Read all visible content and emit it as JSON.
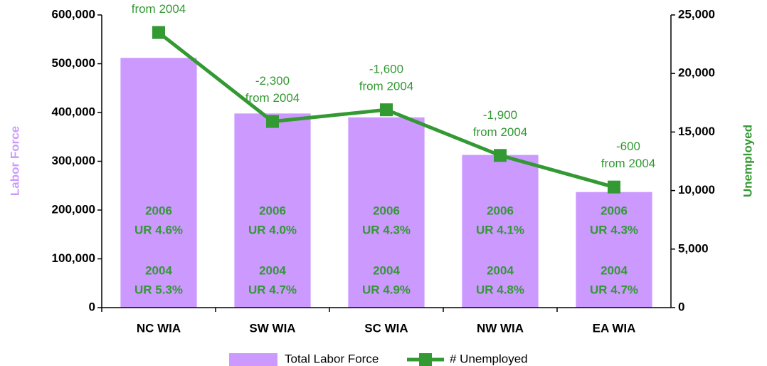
{
  "chart_data": {
    "type": "bar",
    "categories": [
      "NC WIA",
      "SW WIA",
      "SC WIA",
      "NW WIA",
      "EA WIA"
    ],
    "series": [
      {
        "name": "Total Labor Force",
        "type": "bar",
        "color": "#cc99ff",
        "values": [
          512000,
          398000,
          390000,
          313000,
          237000
        ]
      },
      {
        "name": "# Unemployed",
        "type": "line",
        "axis": "y2",
        "color": "#339933",
        "values": [
          23500,
          15900,
          16900,
          13000,
          10300
        ]
      }
    ],
    "ylabel": "Labor Force",
    "y2label": "Unemployed",
    "ylim": [
      0,
      600000
    ],
    "yticks": [
      0,
      {
        "value": 100000,
        "label": "100,000"
      },
      {
        "value": 200000,
        "label": "200,000"
      },
      {
        "value": 300000,
        "label": "300,000"
      },
      {
        "value": 400000,
        "label": "400,000"
      },
      {
        "value": 500000,
        "label": "500,000"
      },
      {
        "value": 600000,
        "label": "600,000"
      }
    ],
    "y2lim": [
      0,
      25000
    ],
    "y2ticks": [
      0,
      {
        "value": 5000,
        "label": "5,000"
      },
      {
        "value": 10000,
        "label": "10,000"
      },
      {
        "value": 15000,
        "label": "15,000"
      },
      {
        "value": 20000,
        "label": "20,000"
      },
      {
        "value": 25000,
        "label": "25,000"
      }
    ],
    "annotations": [
      [
        "from 2004"
      ],
      [
        "-2,300",
        "from 2004"
      ],
      [
        "-1,600",
        "from 2004"
      ],
      [
        "-1,900",
        "from 2004"
      ],
      [
        "-600",
        "from 2004"
      ]
    ],
    "bar_labels": [
      [
        "2006",
        "UR 4.6%",
        "2004",
        "UR 5.3%"
      ],
      [
        "2006",
        "UR 4.0%",
        "2004",
        "UR 4.7%"
      ],
      [
        "2006",
        "UR 4.3%",
        "2004",
        "UR 4.9%"
      ],
      [
        "2006",
        "UR 4.1%",
        "2004",
        "UR 4.8%"
      ],
      [
        "2006",
        "UR 4.3%",
        "2004",
        "UR 4.7%"
      ]
    ],
    "legend": "bottom"
  }
}
